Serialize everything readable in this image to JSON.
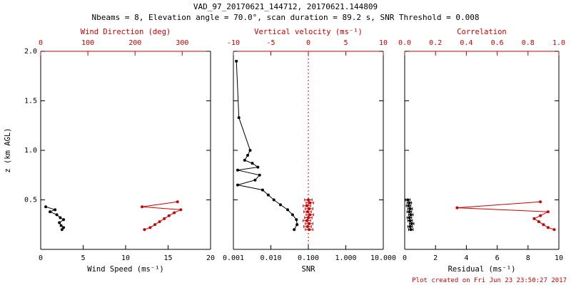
{
  "header": {
    "title": "VAD_97_20170621_144712, 20170621.144809",
    "subtitle": "Nbeams = 8, Elevation angle = 70.0°, scan duration = 89.2 s, SNR Threshold = 0.008"
  },
  "footer": {
    "text": "Plot created on Fri Jun 23 23:50:27 2017"
  },
  "colors": {
    "fg": "#000000",
    "accent": "#cc0000"
  },
  "chart_data": [
    {
      "type": "line",
      "name": "wind",
      "ylabel": "z (km AGL)",
      "ylim": [
        0,
        2
      ],
      "yticks": [
        0,
        0.5,
        1,
        1.5,
        2
      ],
      "ytick_labels": [
        "",
        "0.5",
        "1.0",
        "1.5",
        "2.0"
      ],
      "show_ylabels": true,
      "bottom_axis": {
        "label": "Wind Speed (ms⁻¹)",
        "lim": [
          0,
          20
        ],
        "ticks": [
          0,
          5,
          10,
          15,
          20
        ],
        "tick_labels": [
          "0",
          "5",
          "10",
          "15",
          "20"
        ],
        "color": "#000000"
      },
      "top_axis": {
        "label": "Wind Direction (deg)",
        "lim": [
          0,
          360
        ],
        "ticks": [
          0,
          100,
          200,
          300
        ],
        "tick_labels": [
          "0",
          "100",
          "200",
          "300"
        ],
        "color": "#cc0000"
      },
      "series": [
        {
          "name": "wind-speed",
          "axis": "bottom",
          "color": "#000000",
          "points": [
            [
              0.43,
              0.6
            ],
            [
              0.4,
              1.7
            ],
            [
              0.38,
              1.1
            ],
            [
              0.35,
              1.9
            ],
            [
              0.32,
              2.3
            ],
            [
              0.3,
              2.7
            ],
            [
              0.27,
              2.2
            ],
            [
              0.24,
              2.4
            ],
            [
              0.22,
              2.7
            ],
            [
              0.2,
              2.5
            ]
          ]
        },
        {
          "name": "wind-direction",
          "axis": "top",
          "color": "#cc0000",
          "points": [
            [
              0.48,
              290
            ],
            [
              0.43,
              215
            ],
            [
              0.4,
              297
            ],
            [
              0.37,
              283
            ],
            [
              0.34,
              272
            ],
            [
              0.31,
              262
            ],
            [
              0.28,
              252
            ],
            [
              0.25,
              242
            ],
            [
              0.22,
              232
            ],
            [
              0.2,
              220
            ]
          ]
        }
      ]
    },
    {
      "type": "line",
      "name": "snr",
      "ylabel": "",
      "ylim": [
        0,
        2
      ],
      "yticks": [
        0,
        0.5,
        1,
        1.5,
        2
      ],
      "ytick_labels": [
        "",
        "0.5",
        "1.0",
        "1.5",
        "2.0"
      ],
      "show_ylabels": false,
      "bottom_axis": {
        "label": "SNR",
        "scale": "log",
        "lim": [
          0.001,
          10
        ],
        "ticks": [
          0.001,
          0.01,
          0.1,
          1,
          10
        ],
        "tick_labels": [
          "0.001",
          "0.010",
          "0.100",
          "1.000",
          "10.000"
        ],
        "color": "#000000"
      },
      "top_axis": {
        "label": "Vertical velocity (ms⁻¹)",
        "lim": [
          -10,
          10
        ],
        "ticks": [
          -10,
          -5,
          0,
          5,
          10
        ],
        "tick_labels": [
          "-10",
          "-5",
          "0",
          "5",
          "10"
        ],
        "color": "#cc0000"
      },
      "ref_line": {
        "axis": "top",
        "value": 0,
        "style": "dotted"
      },
      "series": [
        {
          "name": "snr-profile",
          "axis": "bottom",
          "color": "#000000",
          "points": [
            [
              1.9,
              0.0012
            ],
            [
              1.33,
              0.0014
            ],
            [
              1.0,
              0.0028
            ],
            [
              0.95,
              0.0024
            ],
            [
              0.9,
              0.002
            ],
            [
              0.87,
              0.0032
            ],
            [
              0.83,
              0.0045
            ],
            [
              0.8,
              0.0013
            ],
            [
              0.75,
              0.005
            ],
            [
              0.7,
              0.0038
            ],
            [
              0.65,
              0.0013
            ],
            [
              0.6,
              0.006
            ],
            [
              0.55,
              0.0085
            ],
            [
              0.5,
              0.012
            ],
            [
              0.45,
              0.018
            ],
            [
              0.4,
              0.028
            ],
            [
              0.35,
              0.038
            ],
            [
              0.3,
              0.048
            ],
            [
              0.25,
              0.05
            ],
            [
              0.2,
              0.042
            ]
          ]
        },
        {
          "name": "vertical-velocity",
          "axis": "top",
          "color": "#cc0000",
          "xerr": 0.5,
          "points": [
            [
              0.5,
              0.0
            ],
            [
              0.47,
              0.2
            ],
            [
              0.44,
              -0.2
            ],
            [
              0.41,
              0.1
            ],
            [
              0.38,
              -0.1
            ],
            [
              0.35,
              0.2
            ],
            [
              0.32,
              0.0
            ],
            [
              0.29,
              -0.2
            ],
            [
              0.26,
              0.1
            ],
            [
              0.23,
              -0.1
            ],
            [
              0.2,
              0.1
            ]
          ]
        }
      ]
    },
    {
      "type": "line",
      "name": "residual",
      "ylabel": "",
      "ylim": [
        0,
        2
      ],
      "yticks": [
        0,
        0.5,
        1,
        1.5,
        2
      ],
      "ytick_labels": [
        "",
        "0.5",
        "1.0",
        "1.5",
        "2.0"
      ],
      "show_ylabels": false,
      "bottom_axis": {
        "label": "Residual (ms⁻¹)",
        "lim": [
          0,
          10
        ],
        "ticks": [
          0,
          2,
          4,
          6,
          8,
          10
        ],
        "tick_labels": [
          "0",
          "2",
          "4",
          "6",
          "8",
          "10"
        ],
        "color": "#000000"
      },
      "top_axis": {
        "label": "Correlation",
        "lim": [
          0,
          1
        ],
        "ticks": [
          0,
          0.2,
          0.4,
          0.6,
          0.8,
          1.0
        ],
        "tick_labels": [
          "0.0",
          "0.2",
          "0.4",
          "0.6",
          "0.8",
          "1.0"
        ],
        "color": "#cc0000"
      },
      "series": [
        {
          "name": "residual-profile",
          "axis": "bottom",
          "color": "#000000",
          "xerr": 0.15,
          "points": [
            [
              0.5,
              0.2
            ],
            [
              0.47,
              0.3
            ],
            [
              0.44,
              0.25
            ],
            [
              0.41,
              0.35
            ],
            [
              0.38,
              0.3
            ],
            [
              0.35,
              0.4
            ],
            [
              0.32,
              0.3
            ],
            [
              0.29,
              0.35
            ],
            [
              0.26,
              0.45
            ],
            [
              0.23,
              0.35
            ],
            [
              0.2,
              0.4
            ]
          ]
        },
        {
          "name": "correlation",
          "axis": "top",
          "color": "#cc0000",
          "points": [
            [
              0.48,
              0.88
            ],
            [
              0.42,
              0.34
            ],
            [
              0.38,
              0.93
            ],
            [
              0.34,
              0.88
            ],
            [
              0.31,
              0.84
            ],
            [
              0.28,
              0.87
            ],
            [
              0.25,
              0.9
            ],
            [
              0.22,
              0.93
            ],
            [
              0.2,
              0.97
            ]
          ]
        }
      ]
    }
  ]
}
